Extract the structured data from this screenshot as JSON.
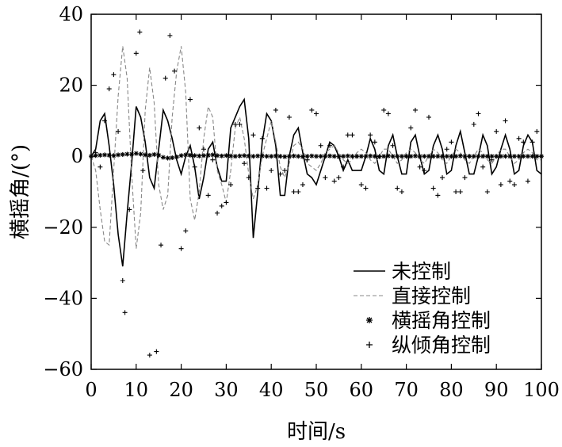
{
  "chart_data": {
    "type": "line",
    "xlabel": "时间/s",
    "ylabel": "横摇角/(°)",
    "xlim": [
      0,
      100
    ],
    "ylim": [
      -60,
      40
    ],
    "xticks": [
      0,
      10,
      20,
      30,
      40,
      50,
      60,
      70,
      80,
      90,
      100
    ],
    "yticks": [
      -60,
      -40,
      -20,
      0,
      20,
      40
    ],
    "ytick_labels": [
      "−60",
      "−40",
      "−20",
      "0",
      "20",
      "40"
    ],
    "grid": false,
    "legend_position": "bottom-right",
    "series": [
      {
        "name": "未控制",
        "style": "solid-line",
        "color": "#000000",
        "x": [
          0,
          1,
          2,
          3,
          4,
          5,
          6,
          7,
          8,
          9,
          10,
          11,
          12,
          13,
          14,
          15,
          16,
          17,
          18,
          19,
          20,
          21,
          22,
          23,
          24,
          25,
          26,
          27,
          28,
          29,
          30,
          31,
          32,
          33,
          34,
          35,
          36,
          37,
          38,
          39,
          40,
          41,
          42,
          43,
          44,
          45,
          46,
          47,
          48,
          49,
          50,
          51,
          52,
          53,
          54,
          55,
          56,
          57,
          58,
          59,
          60,
          61,
          62,
          63,
          64,
          65,
          66,
          67,
          68,
          69,
          70,
          71,
          72,
          73,
          74,
          75,
          76,
          77,
          78,
          79,
          80,
          81,
          82,
          83,
          84,
          85,
          86,
          87,
          88,
          89,
          90,
          91,
          92,
          93,
          94,
          95,
          96,
          97,
          98,
          99,
          100
        ],
        "y": [
          0,
          2,
          10,
          12,
          3,
          -8,
          -22,
          -31,
          -16,
          -2,
          14,
          11,
          4,
          -6,
          -9,
          2,
          13,
          10,
          5,
          -1,
          -5,
          0,
          3,
          -3,
          -12,
          -6,
          2,
          4,
          -3,
          -7,
          -7,
          8,
          11,
          14,
          16,
          5,
          -23,
          -10,
          4,
          12,
          10,
          3,
          -11,
          -11,
          0,
          6,
          8,
          1,
          -5,
          -6,
          -8,
          -4,
          0,
          4,
          3,
          0,
          -4,
          -1,
          -4,
          -4,
          -4,
          0,
          5,
          2,
          -4,
          -5,
          3,
          6,
          0,
          -5,
          -5,
          4,
          6,
          0,
          -5,
          -4,
          3,
          6,
          2,
          -5,
          -4,
          3,
          7,
          1,
          -5,
          -5,
          0,
          6,
          3,
          -5,
          -3,
          2,
          6,
          2,
          -5,
          -4,
          3,
          6,
          4,
          -4,
          -5
        ]
      },
      {
        "name": "直接控制",
        "style": "dashed-line",
        "color": "#888888",
        "x": [
          0,
          1,
          2,
          3,
          4,
          5,
          6,
          7,
          8,
          9,
          10,
          11,
          12,
          13,
          14,
          15,
          16,
          17,
          18,
          19,
          20,
          21,
          22,
          23,
          24,
          25,
          26,
          27,
          28,
          29,
          30,
          31,
          32,
          33,
          34,
          35,
          36,
          37,
          38,
          39,
          40,
          41,
          42,
          43,
          44,
          45,
          46,
          47,
          48,
          49,
          50,
          51,
          52,
          53,
          54,
          55,
          56,
          57,
          58,
          59,
          60,
          61,
          62,
          63,
          64,
          65,
          66,
          67,
          68,
          69,
          70,
          71,
          72,
          73,
          74,
          75,
          76,
          77,
          78,
          79,
          80,
          81,
          82,
          83,
          84,
          85,
          86,
          87,
          88,
          89,
          90,
          91,
          92,
          93,
          94,
          95,
          96,
          97,
          98,
          99,
          100
        ],
        "y": [
          0,
          -4,
          -15,
          -24,
          -25,
          -4,
          17,
          31,
          22,
          -5,
          -26,
          -16,
          13,
          25,
          15,
          -8,
          -15,
          -11,
          11,
          24,
          31,
          18,
          -12,
          -18,
          -10,
          5,
          14,
          11,
          -4,
          -8,
          -13,
          -4,
          8,
          11,
          5,
          -5,
          -12,
          -8,
          0,
          5,
          10,
          4,
          -3,
          -6,
          -2,
          3,
          4,
          2,
          -2,
          -3,
          -4,
          -2,
          1,
          2,
          3,
          1,
          -1,
          -2,
          -1,
          1,
          2,
          1,
          -1,
          -2,
          0,
          2,
          2,
          0,
          -2,
          -1,
          1,
          2,
          1,
          -1,
          -2,
          0,
          2,
          1,
          -1,
          -2,
          0,
          2,
          1,
          -1,
          -2,
          0,
          2,
          1,
          -1,
          -2,
          0,
          2,
          2,
          0,
          -2,
          -1,
          1,
          2,
          1,
          -1,
          -1
        ]
      },
      {
        "name": "横摇角控制",
        "style": "asterisk-markers",
        "color": "#000000",
        "x": [
          0,
          1,
          2,
          3,
          4,
          5,
          6,
          7,
          8,
          9,
          10,
          11,
          12,
          13,
          14,
          15,
          16,
          17,
          18,
          19,
          20,
          21,
          22,
          23,
          24,
          25,
          26,
          27,
          28,
          29,
          30,
          31,
          32,
          33,
          34,
          35,
          36,
          37,
          38,
          39,
          40,
          41,
          42,
          43,
          44,
          45,
          46,
          47,
          48,
          49,
          50,
          51,
          52,
          53,
          54,
          55,
          56,
          57,
          58,
          59,
          60,
          61,
          62,
          63,
          64,
          65,
          66,
          67,
          68,
          69,
          70,
          71,
          72,
          73,
          74,
          75,
          76,
          77,
          78,
          79,
          80,
          81,
          82,
          83,
          84,
          85,
          86,
          87,
          88,
          89,
          90,
          91,
          92,
          93,
          94,
          95,
          96,
          97,
          98,
          99,
          100
        ],
        "y": [
          0,
          0.2,
          0.3,
          0.4,
          0.3,
          0.2,
          0.4,
          0.5,
          0.6,
          0.6,
          0.8,
          0.6,
          0.4,
          0.3,
          0.5,
          0.3,
          -0.3,
          -0.5,
          -0.4,
          -0.2,
          0.2,
          0.4,
          0.3,
          0.2,
          0.1,
          0.2,
          0.3,
          0.4,
          0.2,
          0.1,
          0.2,
          0.1,
          0,
          0.1,
          0.2,
          0.1,
          0,
          0.1,
          0.1,
          0,
          0,
          0.1,
          0,
          -0.1,
          0,
          0.1,
          0,
          -0.1,
          0,
          0.1,
          0,
          0,
          0,
          0.1,
          0,
          -0.1,
          0,
          0.1,
          0,
          0,
          0,
          0,
          0.1,
          0,
          -0.1,
          0,
          0.1,
          0,
          0,
          0,
          0,
          0,
          0.1,
          0,
          0,
          0,
          0,
          0,
          0,
          0,
          0,
          0,
          0.1,
          0,
          0,
          0,
          0,
          0,
          0,
          0,
          0,
          0,
          0,
          0,
          0,
          0,
          0,
          0,
          0,
          0,
          0
        ]
      },
      {
        "name": "纵倾角控制",
        "style": "plus-markers",
        "color": "#000000",
        "x": [
          1,
          2,
          3,
          4,
          5,
          6,
          7,
          7.5,
          8.5,
          10,
          10.8,
          11.5,
          13,
          14.5,
          15.5,
          16.5,
          17.5,
          18.5,
          20,
          21,
          22,
          23,
          24,
          25,
          26,
          27,
          28,
          29,
          30,
          31,
          32,
          33,
          34,
          35,
          36,
          37,
          38,
          39,
          40,
          41,
          42,
          43,
          44,
          45,
          46,
          47,
          48,
          49,
          50,
          51,
          52,
          53,
          54,
          55,
          56,
          57,
          58,
          59,
          60,
          61,
          62,
          63,
          64,
          65,
          66,
          67,
          68,
          69,
          70,
          71,
          72,
          73,
          74,
          75,
          76,
          77,
          78,
          79,
          80,
          81,
          82,
          83,
          84,
          85,
          86,
          87,
          88,
          89,
          90,
          91,
          92,
          93,
          94,
          95,
          96,
          97,
          98,
          99
        ],
        "y": [
          1,
          -3,
          10,
          19,
          23,
          7,
          -35,
          -44,
          -15,
          29,
          35,
          -4,
          -56,
          -55,
          -25,
          22,
          34,
          24,
          -26,
          -21,
          16,
          -3,
          8,
          2,
          -11,
          -1,
          -16,
          -14,
          -13,
          -8,
          9,
          9,
          -2,
          -6,
          6,
          -9,
          5,
          -9,
          -4,
          13,
          -5,
          -4,
          11,
          -10,
          -10,
          -8,
          -1,
          13,
          12,
          3,
          -6,
          3,
          -7,
          -6,
          -3,
          6,
          6,
          0,
          -8,
          -9,
          6,
          4,
          0,
          13,
          12,
          3,
          -9,
          -10,
          0,
          8,
          13,
          -3,
          -4,
          11,
          -9,
          -11,
          -6,
          2,
          4,
          -10,
          -10,
          -6,
          0,
          9,
          12,
          -3,
          -10,
          -1,
          7,
          -8,
          10,
          -7,
          -8,
          5,
          4,
          -7,
          4,
          7
        ]
      }
    ]
  }
}
